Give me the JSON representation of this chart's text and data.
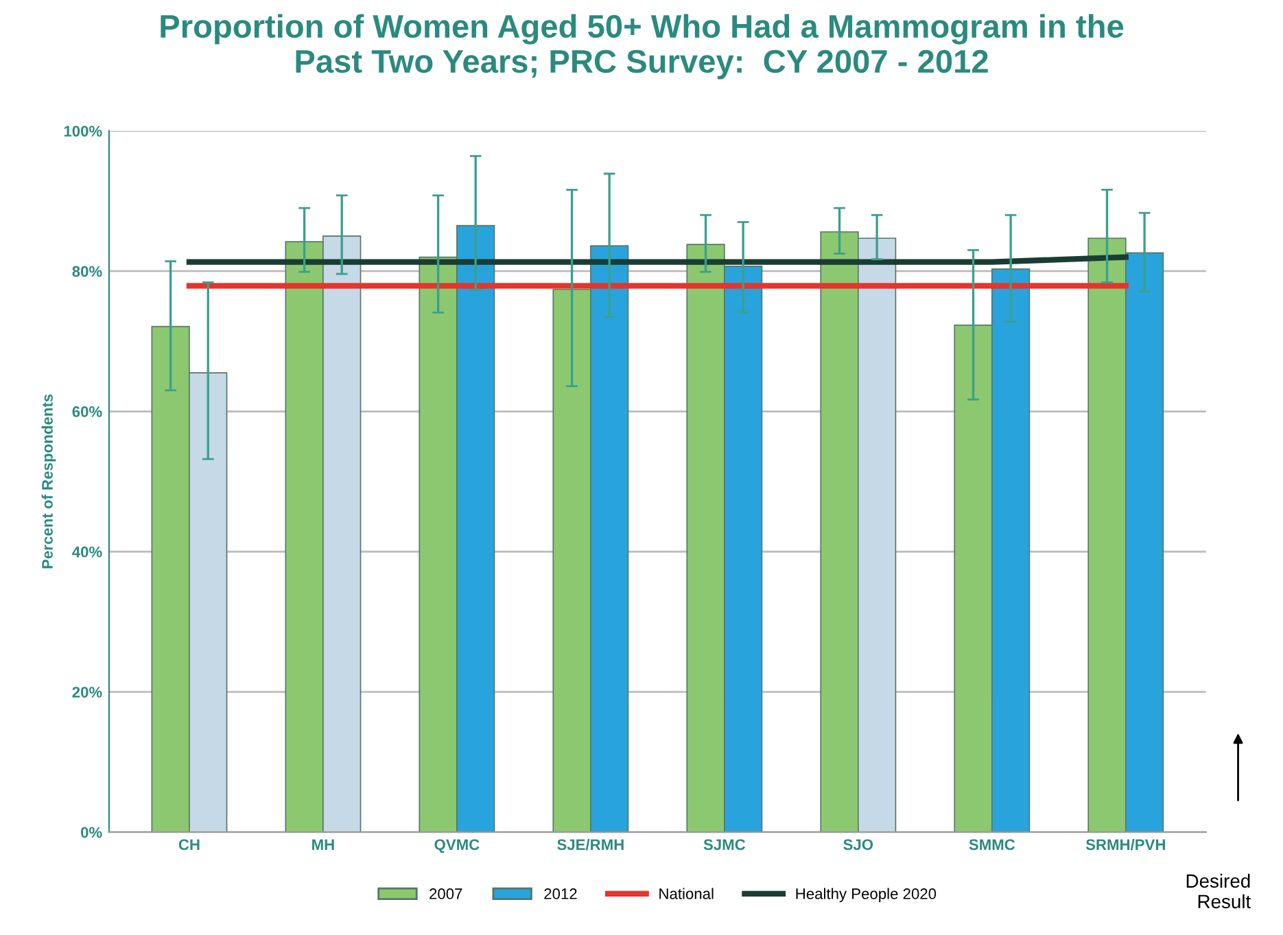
{
  "chart_data": {
    "type": "bar",
    "title": "Proportion of Women Aged 50+ Who Had a Mammogram in the\nPast Two Years; PRC Survey:  CY 2007 - 2012",
    "ylabel": "Percent of Respondents",
    "categories": [
      "CH",
      "MH",
      "QVMC",
      "SJE/RMH",
      "SJMC",
      "SJO",
      "SMMC",
      "SRMH/PVH"
    ],
    "series": [
      {
        "name": "2007",
        "color": "#8cc870",
        "values": [
          72.1,
          84.2,
          82.0,
          77.4,
          83.8,
          85.6,
          72.3,
          84.7
        ],
        "errors": [
          [
            63.0,
            81.4
          ],
          [
            79.9,
            89.0
          ],
          [
            74.1,
            90.8
          ],
          [
            63.6,
            91.6
          ],
          [
            79.9,
            88.0
          ],
          [
            82.5,
            89.0
          ],
          [
            61.7,
            83.0
          ],
          [
            78.4,
            91.6
          ]
        ]
      },
      {
        "name": "2012",
        "color": "#29a3dc",
        "colors": [
          "#c5d9e6",
          "#c5d9e6",
          "#29a3dc",
          "#29a3dc",
          "#29a3dc",
          "#c5d9e6",
          "#29a3dc",
          "#29a3dc"
        ],
        "values": [
          65.5,
          85.0,
          86.5,
          83.6,
          80.7,
          84.7,
          80.3,
          82.6
        ],
        "errors": [
          [
            53.2,
            78.4
          ],
          [
            79.6,
            90.8
          ],
          [
            77.3,
            96.4
          ],
          [
            73.5,
            93.9
          ],
          [
            74.1,
            87.0
          ],
          [
            81.7,
            88.0
          ],
          [
            72.8,
            88.0
          ],
          [
            77.1,
            88.3
          ]
        ]
      },
      {
        "name": "National",
        "type": "line",
        "color": "#e8342a",
        "values": [
          77.9,
          77.9,
          77.9,
          77.9,
          77.9,
          77.9,
          77.9,
          77.9
        ]
      },
      {
        "name": "Healthy People 2020",
        "type": "line",
        "color": "#1a3d33",
        "values": [
          81.3,
          81.3,
          81.3,
          81.3,
          81.3,
          81.3,
          81.3,
          82.0
        ]
      }
    ],
    "ylim": [
      0,
      100
    ],
    "yticks": [
      {
        "value": 0,
        "label": "0%"
      },
      {
        "value": 20,
        "label": "20%"
      },
      {
        "value": 40,
        "label": "40%"
      },
      {
        "value": 60,
        "label": "60%"
      },
      {
        "value": 80,
        "label": "80%"
      },
      {
        "value": 100,
        "label": "100%"
      }
    ],
    "grid": "y",
    "legend": "bottom",
    "annotations": [
      "Desired\nResult"
    ]
  }
}
